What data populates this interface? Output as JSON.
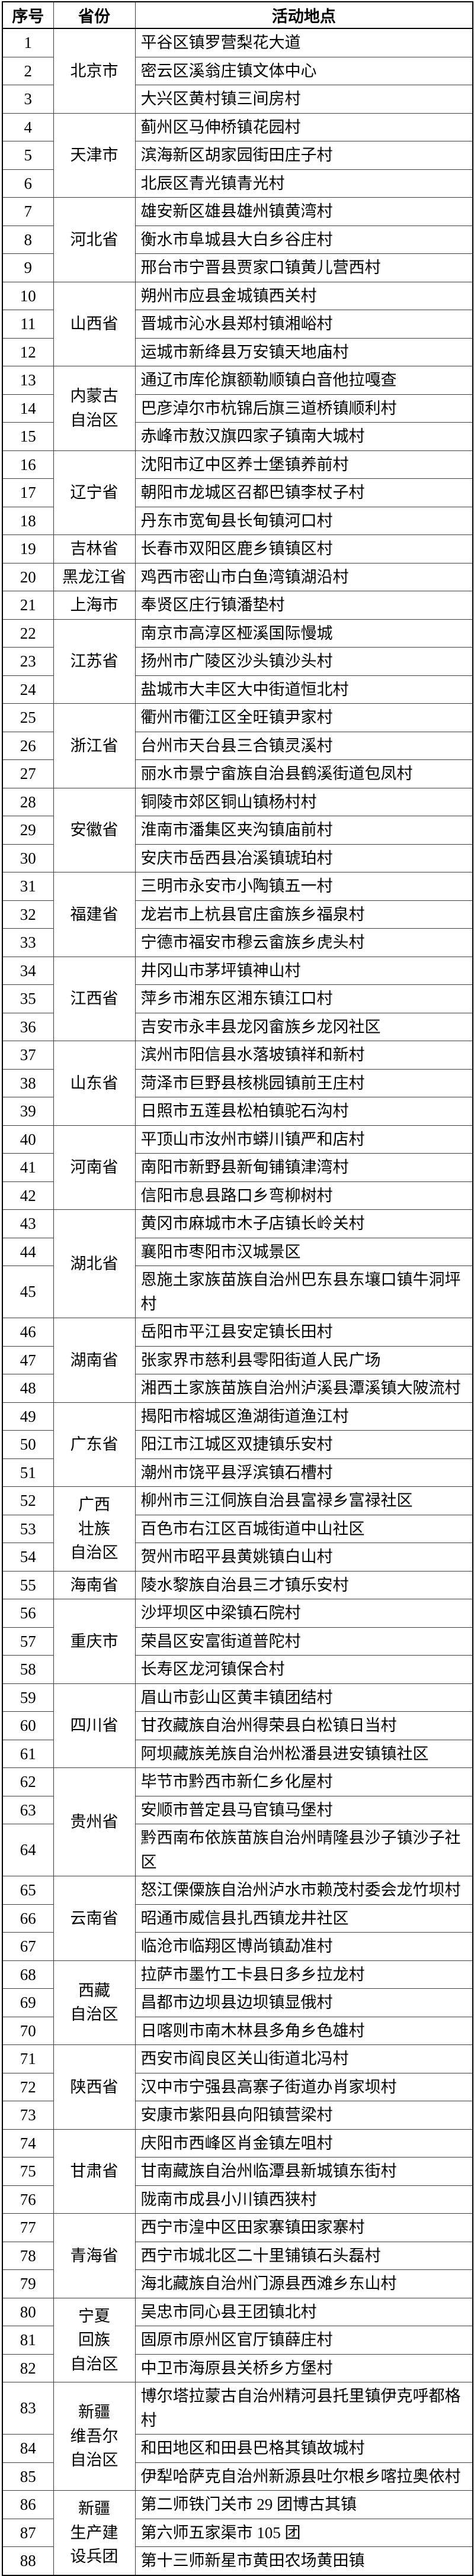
{
  "table": {
    "columns": [
      "序号",
      "省份",
      "活动地点"
    ],
    "groups": [
      {
        "province": "北京市",
        "entries": [
          [
            "1",
            "平谷区镇罗营梨花大道"
          ],
          [
            "2",
            "密云区溪翁庄镇文体中心"
          ],
          [
            "3",
            "大兴区黄村镇三间房村"
          ]
        ]
      },
      {
        "province": "天津市",
        "entries": [
          [
            "4",
            "蓟州区马伸桥镇花园村"
          ],
          [
            "5",
            "滨海新区胡家园街田庄子村"
          ],
          [
            "6",
            "北辰区青光镇青光村"
          ]
        ]
      },
      {
        "province": "河北省",
        "entries": [
          [
            "7",
            "雄安新区雄县雄州镇黄湾村"
          ],
          [
            "8",
            "衡水市阜城县大白乡谷庄村"
          ],
          [
            "9",
            "邢台市宁晋县贾家口镇黄儿营西村"
          ]
        ]
      },
      {
        "province": "山西省",
        "entries": [
          [
            "10",
            "朔州市应县金城镇西关村"
          ],
          [
            "11",
            "晋城市沁水县郑村镇湘峪村"
          ],
          [
            "12",
            "运城市新绛县万安镇天地庙村"
          ]
        ]
      },
      {
        "province": "内蒙古\n自治区",
        "entries": [
          [
            "13",
            "通辽市库伦旗额勒顺镇白音他拉嘎查"
          ],
          [
            "14",
            "巴彦淖尔市杭锦后旗三道桥镇顺利村"
          ],
          [
            "15",
            "赤峰市敖汉旗四家子镇南大城村"
          ]
        ]
      },
      {
        "province": "辽宁省",
        "entries": [
          [
            "16",
            "沈阳市辽中区养士堡镇养前村"
          ],
          [
            "17",
            "朝阳市龙城区召都巴镇李杖子村"
          ],
          [
            "18",
            "丹东市宽甸县长甸镇河口村"
          ]
        ]
      },
      {
        "province": "吉林省",
        "entries": [
          [
            "19",
            "长春市双阳区鹿乡镇镇区村"
          ]
        ]
      },
      {
        "province": "黑龙江省",
        "entries": [
          [
            "20",
            "鸡西市密山市白鱼湾镇湖沿村"
          ]
        ]
      },
      {
        "province": "上海市",
        "entries": [
          [
            "21",
            "奉贤区庄行镇潘垫村"
          ]
        ]
      },
      {
        "province": "江苏省",
        "entries": [
          [
            "22",
            "南京市高淳区桠溪国际慢城"
          ],
          [
            "23",
            "扬州市广陵区沙头镇沙头村"
          ],
          [
            "24",
            "盐城市大丰区大中街道恒北村"
          ]
        ]
      },
      {
        "province": "浙江省",
        "entries": [
          [
            "25",
            "衢州市衢江区全旺镇尹家村"
          ],
          [
            "26",
            "台州市天台县三合镇灵溪村"
          ],
          [
            "27",
            "丽水市景宁畲族自治县鹤溪街道包凤村"
          ]
        ]
      },
      {
        "province": "安徽省",
        "entries": [
          [
            "28",
            "铜陵市郊区铜山镇杨村村"
          ],
          [
            "29",
            "淮南市潘集区夹沟镇庙前村"
          ],
          [
            "30",
            "安庆市岳西县冶溪镇琥珀村"
          ]
        ]
      },
      {
        "province": "福建省",
        "entries": [
          [
            "31",
            "三明市永安市小陶镇五一村"
          ],
          [
            "32",
            "龙岩市上杭县官庄畲族乡福泉村"
          ],
          [
            "33",
            "宁德市福安市穆云畲族乡虎头村"
          ]
        ]
      },
      {
        "province": "江西省",
        "entries": [
          [
            "34",
            "井冈山市茅坪镇神山村"
          ],
          [
            "35",
            "萍乡市湘东区湘东镇江口村"
          ],
          [
            "36",
            "吉安市永丰县龙冈畲族乡龙冈社区"
          ]
        ]
      },
      {
        "province": "山东省",
        "entries": [
          [
            "37",
            "滨州市阳信县水落坡镇祥和新村"
          ],
          [
            "38",
            "菏泽市巨野县核桃园镇前王庄村"
          ],
          [
            "39",
            "日照市五莲县松柏镇驼石沟村"
          ]
        ]
      },
      {
        "province": "河南省",
        "entries": [
          [
            "40",
            "平顶山市汝州市蟒川镇严和店村"
          ],
          [
            "41",
            "南阳市新野县新甸铺镇津湾村"
          ],
          [
            "42",
            "信阳市息县路口乡弯柳树村"
          ]
        ]
      },
      {
        "province": "湖北省",
        "entries": [
          [
            "43",
            "黄冈市麻城市木子店镇长岭关村"
          ],
          [
            "44",
            "襄阳市枣阳市汉城景区"
          ],
          [
            "45",
            "恩施土家族苗族自治州巴东县东壤口镇牛洞坪村"
          ]
        ]
      },
      {
        "province": "湖南省",
        "entries": [
          [
            "46",
            "岳阳市平江县安定镇长田村"
          ],
          [
            "47",
            "张家界市慈利县零阳街道人民广场"
          ],
          [
            "48",
            "湘西土家族苗族自治州泸溪县潭溪镇大陂流村"
          ]
        ]
      },
      {
        "province": "广东省",
        "entries": [
          [
            "49",
            "揭阳市榕城区渔湖街道渔江村"
          ],
          [
            "50",
            "阳江市江城区双捷镇乐安村"
          ],
          [
            "51",
            "潮州市饶平县浮滨镇石槽村"
          ]
        ]
      },
      {
        "province": "广西\n壮族\n自治区",
        "entries": [
          [
            "52",
            "柳州市三江侗族自治县富禄乡富禄社区"
          ],
          [
            "53",
            "百色市右江区百城街道中山社区"
          ],
          [
            "54",
            "贺州市昭平县黄姚镇白山村"
          ]
        ]
      },
      {
        "province": "海南省",
        "entries": [
          [
            "55",
            "陵水黎族自治县三才镇乐安村"
          ]
        ]
      },
      {
        "province": "重庆市",
        "entries": [
          [
            "56",
            "沙坪坝区中梁镇石院村"
          ],
          [
            "57",
            "荣昌区安富街道普陀村"
          ],
          [
            "58",
            "长寿区龙河镇保合村"
          ]
        ]
      },
      {
        "province": "四川省",
        "entries": [
          [
            "59",
            "眉山市彭山区黄丰镇团结村"
          ],
          [
            "60",
            "甘孜藏族自治州得荣县白松镇日当村"
          ],
          [
            "61",
            "阿坝藏族羌族自治州松潘县进安镇镇社区"
          ]
        ]
      },
      {
        "province": "贵州省",
        "entries": [
          [
            "62",
            "毕节市黔西市新仁乡化屋村"
          ],
          [
            "63",
            "安顺市普定县马官镇马堡村"
          ],
          [
            "64",
            "黔西南布依族苗族自治州晴隆县沙子镇沙子社区"
          ]
        ]
      },
      {
        "province": "云南省",
        "entries": [
          [
            "65",
            "怒江傈僳族自治州泸水市赖茂村委会龙竹坝村"
          ],
          [
            "66",
            "昭通市威信县扎西镇龙井社区"
          ],
          [
            "67",
            "临沧市临翔区博尚镇勐准村"
          ]
        ]
      },
      {
        "province": "西藏\n自治区",
        "entries": [
          [
            "68",
            "拉萨市墨竹工卡县日多乡拉龙村"
          ],
          [
            "69",
            "昌都市边坝县边坝镇显俄村"
          ],
          [
            "70",
            "日喀则市南木林县多角乡色雄村"
          ]
        ]
      },
      {
        "province": "陕西省",
        "entries": [
          [
            "71",
            "西安市阎良区关山街道北冯村"
          ],
          [
            "72",
            "汉中市宁强县高寨子街道办肖家坝村"
          ],
          [
            "73",
            "安康市紫阳县向阳镇营梁村"
          ]
        ]
      },
      {
        "province": "甘肃省",
        "entries": [
          [
            "74",
            "庆阳市西峰区肖金镇左咀村"
          ],
          [
            "75",
            "甘南藏族自治州临潭县新城镇东街村"
          ],
          [
            "76",
            "陇南市成县小川镇西狭村"
          ]
        ]
      },
      {
        "province": "青海省",
        "entries": [
          [
            "77",
            "西宁市湟中区田家寨镇田家寨村"
          ],
          [
            "78",
            "西宁市城北区二十里铺镇石头磊村"
          ],
          [
            "79",
            "海北藏族自治州门源县西滩乡东山村"
          ]
        ]
      },
      {
        "province": "宁夏\n回族\n自治区",
        "entries": [
          [
            "80",
            "吴忠市同心县王团镇北村"
          ],
          [
            "81",
            "固原市原州区官厅镇薛庄村"
          ],
          [
            "82",
            "中卫市海原县关桥乡方堡村"
          ]
        ]
      },
      {
        "province": "新疆\n维吾尔\n自治区",
        "entries": [
          [
            "83",
            "博尔塔拉蒙古自治州精河县托里镇伊克呼都格村"
          ],
          [
            "84",
            "和田地区和田县巴格其镇故城村"
          ],
          [
            "85",
            "伊犁哈萨克自治州新源县吐尔根乡喀拉奥依村"
          ]
        ]
      },
      {
        "province": "新疆\n生产建\n设兵团",
        "entries": [
          [
            "86",
            "第二师铁门关市 29 团博古其镇"
          ],
          [
            "87",
            "第六师五家渠市 105 团"
          ],
          [
            "88",
            "第十三师新星市黄田农场黄田镇"
          ]
        ]
      }
    ]
  }
}
